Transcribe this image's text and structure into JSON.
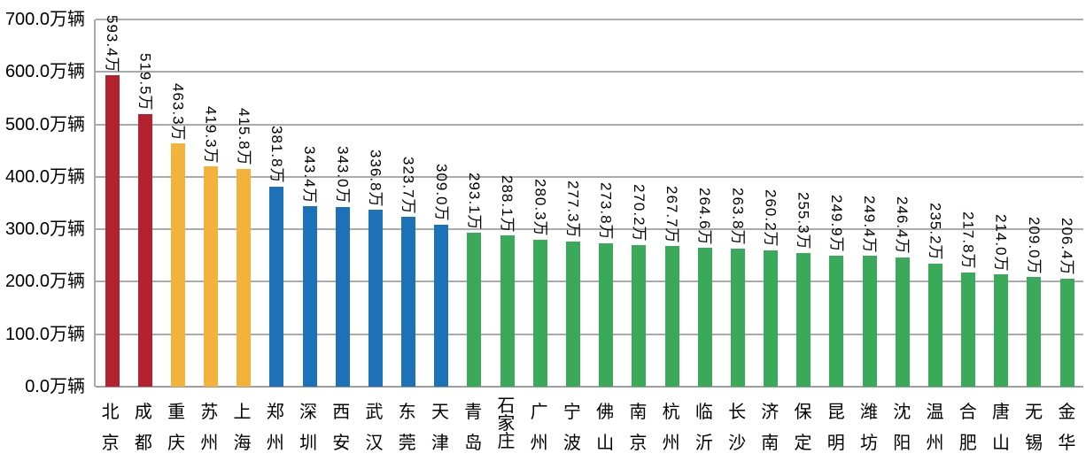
{
  "chart_data": {
    "type": "bar",
    "title": "",
    "unit": "万辆",
    "value_suffix": "万",
    "ylim": [
      0,
      700
    ],
    "ytick_step": 100,
    "yticks": [
      "700.0万辆",
      "600.0万辆",
      "500.0万辆",
      "400.0万辆",
      "300.0万辆",
      "200.0万辆",
      "100.0万辆",
      "0.0万辆"
    ],
    "grid": true,
    "legend": "none",
    "categories": [
      "北京",
      "成都",
      "重庆",
      "苏州",
      "上海",
      "郑州",
      "深圳",
      "西安",
      "武汉",
      "东莞",
      "天津",
      "青岛",
      "石家庄",
      "广州",
      "宁波",
      "佛山",
      "南京",
      "杭州",
      "临沂",
      "长沙",
      "济南",
      "保定",
      "昆明",
      "潍坊",
      "沈阳",
      "温州",
      "合肥",
      "唐山",
      "无锡",
      "金华"
    ],
    "values": [
      593.4,
      519.5,
      463.3,
      419.3,
      415.8,
      381.8,
      343.4,
      343.0,
      336.8,
      323.7,
      309.0,
      293.1,
      288.1,
      280.3,
      277.3,
      273.8,
      270.2,
      267.7,
      264.6,
      263.8,
      260.2,
      255.3,
      249.9,
      249.4,
      246.4,
      235.2,
      217.8,
      214.0,
      209.0,
      206.4
    ],
    "value_labels": [
      "593.4万",
      "519.5万",
      "463.3万",
      "419.3万",
      "415.8万",
      "381.8万",
      "343.4万",
      "343.0万",
      "336.8万",
      "323.7万",
      "309.0万",
      "293.1万",
      "288.1万",
      "280.3万",
      "277.3万",
      "273.8万",
      "270.2万",
      "267.7万",
      "264.6万",
      "263.8万",
      "260.2万",
      "255.3万",
      "249.9万",
      "249.4万",
      "246.4万",
      "235.2万",
      "217.8万",
      "214.0万",
      "209.0万",
      "206.4万"
    ],
    "bar_color_keys": [
      "red",
      "red",
      "yellow",
      "yellow",
      "yellow",
      "blue",
      "blue",
      "blue",
      "blue",
      "blue",
      "blue",
      "green",
      "green",
      "green",
      "green",
      "green",
      "green",
      "green",
      "green",
      "green",
      "green",
      "green",
      "green",
      "green",
      "green",
      "green",
      "green",
      "green",
      "green",
      "green"
    ]
  },
  "colors": {
    "red": "#b2232f",
    "yellow": "#f5b23b",
    "blue": "#1d72b7",
    "green": "#3aaa5a",
    "gridline": "#ababab",
    "axis": "#9e9e9e",
    "text": "#000000"
  }
}
